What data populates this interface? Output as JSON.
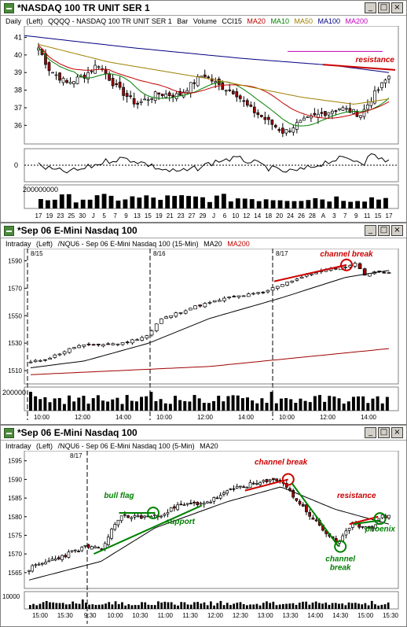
{
  "colors": {
    "ma10": "#008000",
    "ma20": "#c00000",
    "ma50": "#a08000",
    "ma100": "#000080",
    "ma200": "#c000c0",
    "up": "#ffffff",
    "down": "#a00000",
    "annot_red": "#cc0000",
    "annot_green": "#008000"
  },
  "windows": [
    {
      "title": "*NASDAQ 100 TR UNIT SER 1",
      "buttons": [
        "_",
        "□",
        "×"
      ],
      "header": {
        "period": "Daily",
        "side": "(Left)",
        "symbol": "QQQQ - NASDAQ 100 TR UNIT SER 1",
        "type": "Bar",
        "vol": "Volume",
        "cci": "CCI15",
        "ma20": "MA20",
        "ma10": "MA10",
        "ma50": "MA50",
        "ma100": "MA100",
        "ma200": "MA200"
      },
      "yticks": [
        "41",
        "40",
        "39",
        "38",
        "37",
        "36"
      ],
      "cci_zero": "0",
      "vol_label": "200000000",
      "xticks": [
        "17",
        "19",
        "23",
        "25",
        "30",
        "J",
        "5",
        "7",
        "9",
        "13",
        "15",
        "19",
        "21",
        "23",
        "27",
        "29",
        "J",
        "6",
        "10",
        "12",
        "14",
        "18",
        "20",
        "24",
        "26",
        "28",
        "A",
        "3",
        "7",
        "9",
        "11",
        "15",
        "17"
      ],
      "annotations": [
        "resistance"
      ]
    },
    {
      "title": "*Sep 06  E-Mini Nasdaq 100",
      "buttons": [
        "_",
        "□",
        "×"
      ],
      "header": {
        "period": "Intraday",
        "side": "(Left)",
        "symbol": "/NQU6 - Sep 06  E-Mini Nasdaq 100  (15-Min)",
        "ma20": "MA20",
        "ma200": "MA200"
      },
      "yticks": [
        "1590",
        "1570",
        "1550",
        "1530",
        "1510"
      ],
      "dates": [
        "8/15",
        "8/16",
        "8/17"
      ],
      "vol_label": "200000",
      "xticks": [
        "10:00",
        "12:00",
        "14:00",
        "10:00",
        "12:00",
        "14:00",
        "10:00",
        "12:00",
        "14:00"
      ],
      "annotations": [
        "channel break"
      ]
    },
    {
      "title": "*Sep 06  E-Mini Nasdaq 100",
      "buttons": [
        "_",
        "□",
        "×"
      ],
      "header": {
        "period": "Intraday",
        "side": "(Left)",
        "symbol": "/NQU6 - Sep 06  E-Mini Nasdaq 100  (5-Min)",
        "ma20": "MA20"
      },
      "yticks": [
        "1595",
        "1590",
        "1585",
        "1580",
        "1575",
        "1570",
        "1565"
      ],
      "dates": [
        "8/17"
      ],
      "vol_label": "10000",
      "xticks": [
        "15:00",
        "15:30",
        "9:30",
        "10:00",
        "10:30",
        "11:00",
        "11:30",
        "12:00",
        "12:30",
        "13:00",
        "13:30",
        "14:00",
        "14:30",
        "15:00",
        "15:30"
      ],
      "annotations": [
        "bull flag",
        "support",
        "channel break",
        "channel break",
        "resistance",
        "phoenix"
      ]
    }
  ]
}
